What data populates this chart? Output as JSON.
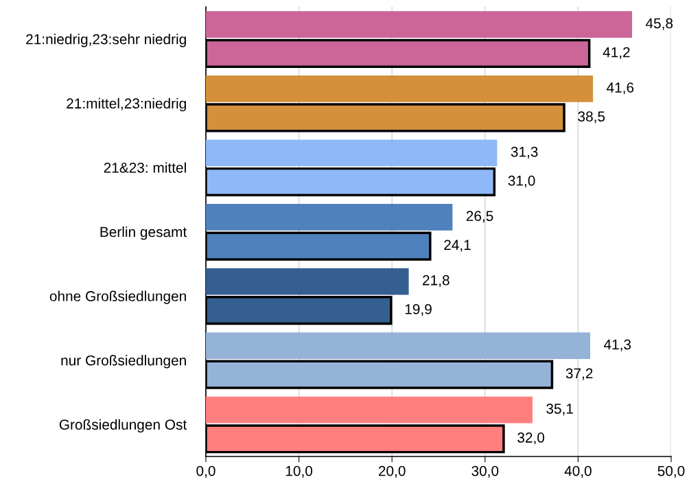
{
  "chart_data": {
    "type": "bar",
    "orientation": "horizontal",
    "categories": [
      "21:niedrig,23:sehr niedrig",
      "21:mittel,23:niedrig",
      "21&23: mittel",
      "Berlin gesamt",
      "ohne Großsiedlungen",
      "nur Großsiedlungen",
      "Großsiedlungen Ost"
    ],
    "series": [
      {
        "colors": [
          "#cc6699",
          "#d4903a",
          "#8fb8f8",
          "#4f81bd",
          "#365f91",
          "#95b3d7",
          "#ff7f7f"
        ],
        "values": [
          45.8,
          41.6,
          31.3,
          26.5,
          21.8,
          41.3,
          35.1
        ],
        "value_labels": [
          "45,8",
          "41,6",
          "31,3",
          "26,5",
          "21,8",
          "41,3",
          "35,1"
        ]
      },
      {
        "colors": [
          "#cc6699",
          "#d4903a",
          "#8fb8f8",
          "#4f81bd",
          "#365f91",
          "#95b3d7",
          "#ff7f7f"
        ],
        "values": [
          41.2,
          38.5,
          31.0,
          24.1,
          19.9,
          37.2,
          32.0
        ],
        "value_labels": [
          "41,2",
          "38,5",
          "31,0",
          "24,1",
          "19,9",
          "37,2",
          "32,0"
        ]
      }
    ],
    "xlim": [
      0,
      50
    ],
    "xticks": [
      {
        "value": 0,
        "label": "0,0"
      },
      {
        "value": 10,
        "label": "10,0"
      },
      {
        "value": 20,
        "label": "20,0"
      },
      {
        "value": 30,
        "label": "30,0"
      },
      {
        "value": 40,
        "label": "40,0"
      },
      {
        "value": 50,
        "label": "50,0"
      }
    ],
    "grid": "x",
    "legend": false
  }
}
